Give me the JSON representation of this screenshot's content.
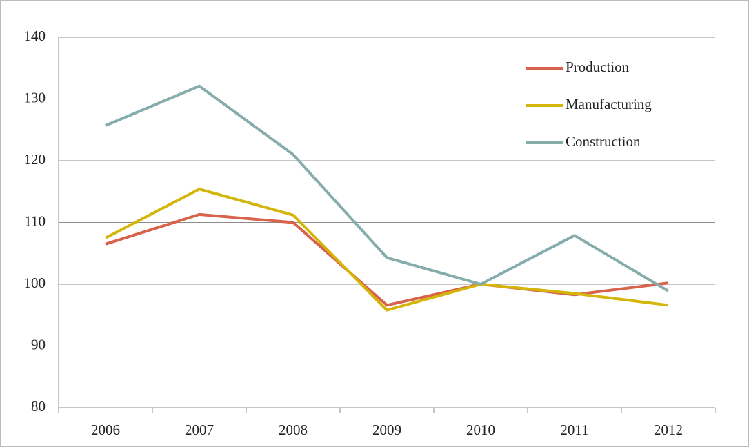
{
  "chart_data": {
    "type": "line",
    "categories": [
      "2006",
      "2007",
      "2008",
      "2009",
      "2010",
      "2011",
      "2012"
    ],
    "series": [
      {
        "name": "Production",
        "color": "#d9624a",
        "values": [
          106.5,
          111.3,
          110,
          96.6,
          100,
          98.3,
          100.2
        ]
      },
      {
        "name": "Manufacturing",
        "color": "#d4b60a",
        "values": [
          107.5,
          115.4,
          111.2,
          95.8,
          100,
          98.5,
          96.6
        ]
      },
      {
        "name": "Construction",
        "color": "#86acac",
        "values": [
          125.7,
          132.1,
          121,
          104.3,
          100,
          107.9,
          98.9
        ]
      }
    ],
    "ylim": [
      80,
      140
    ],
    "yticks": [
      80,
      90,
      100,
      110,
      120,
      130,
      140
    ],
    "grid": true,
    "legend": "upper right"
  }
}
